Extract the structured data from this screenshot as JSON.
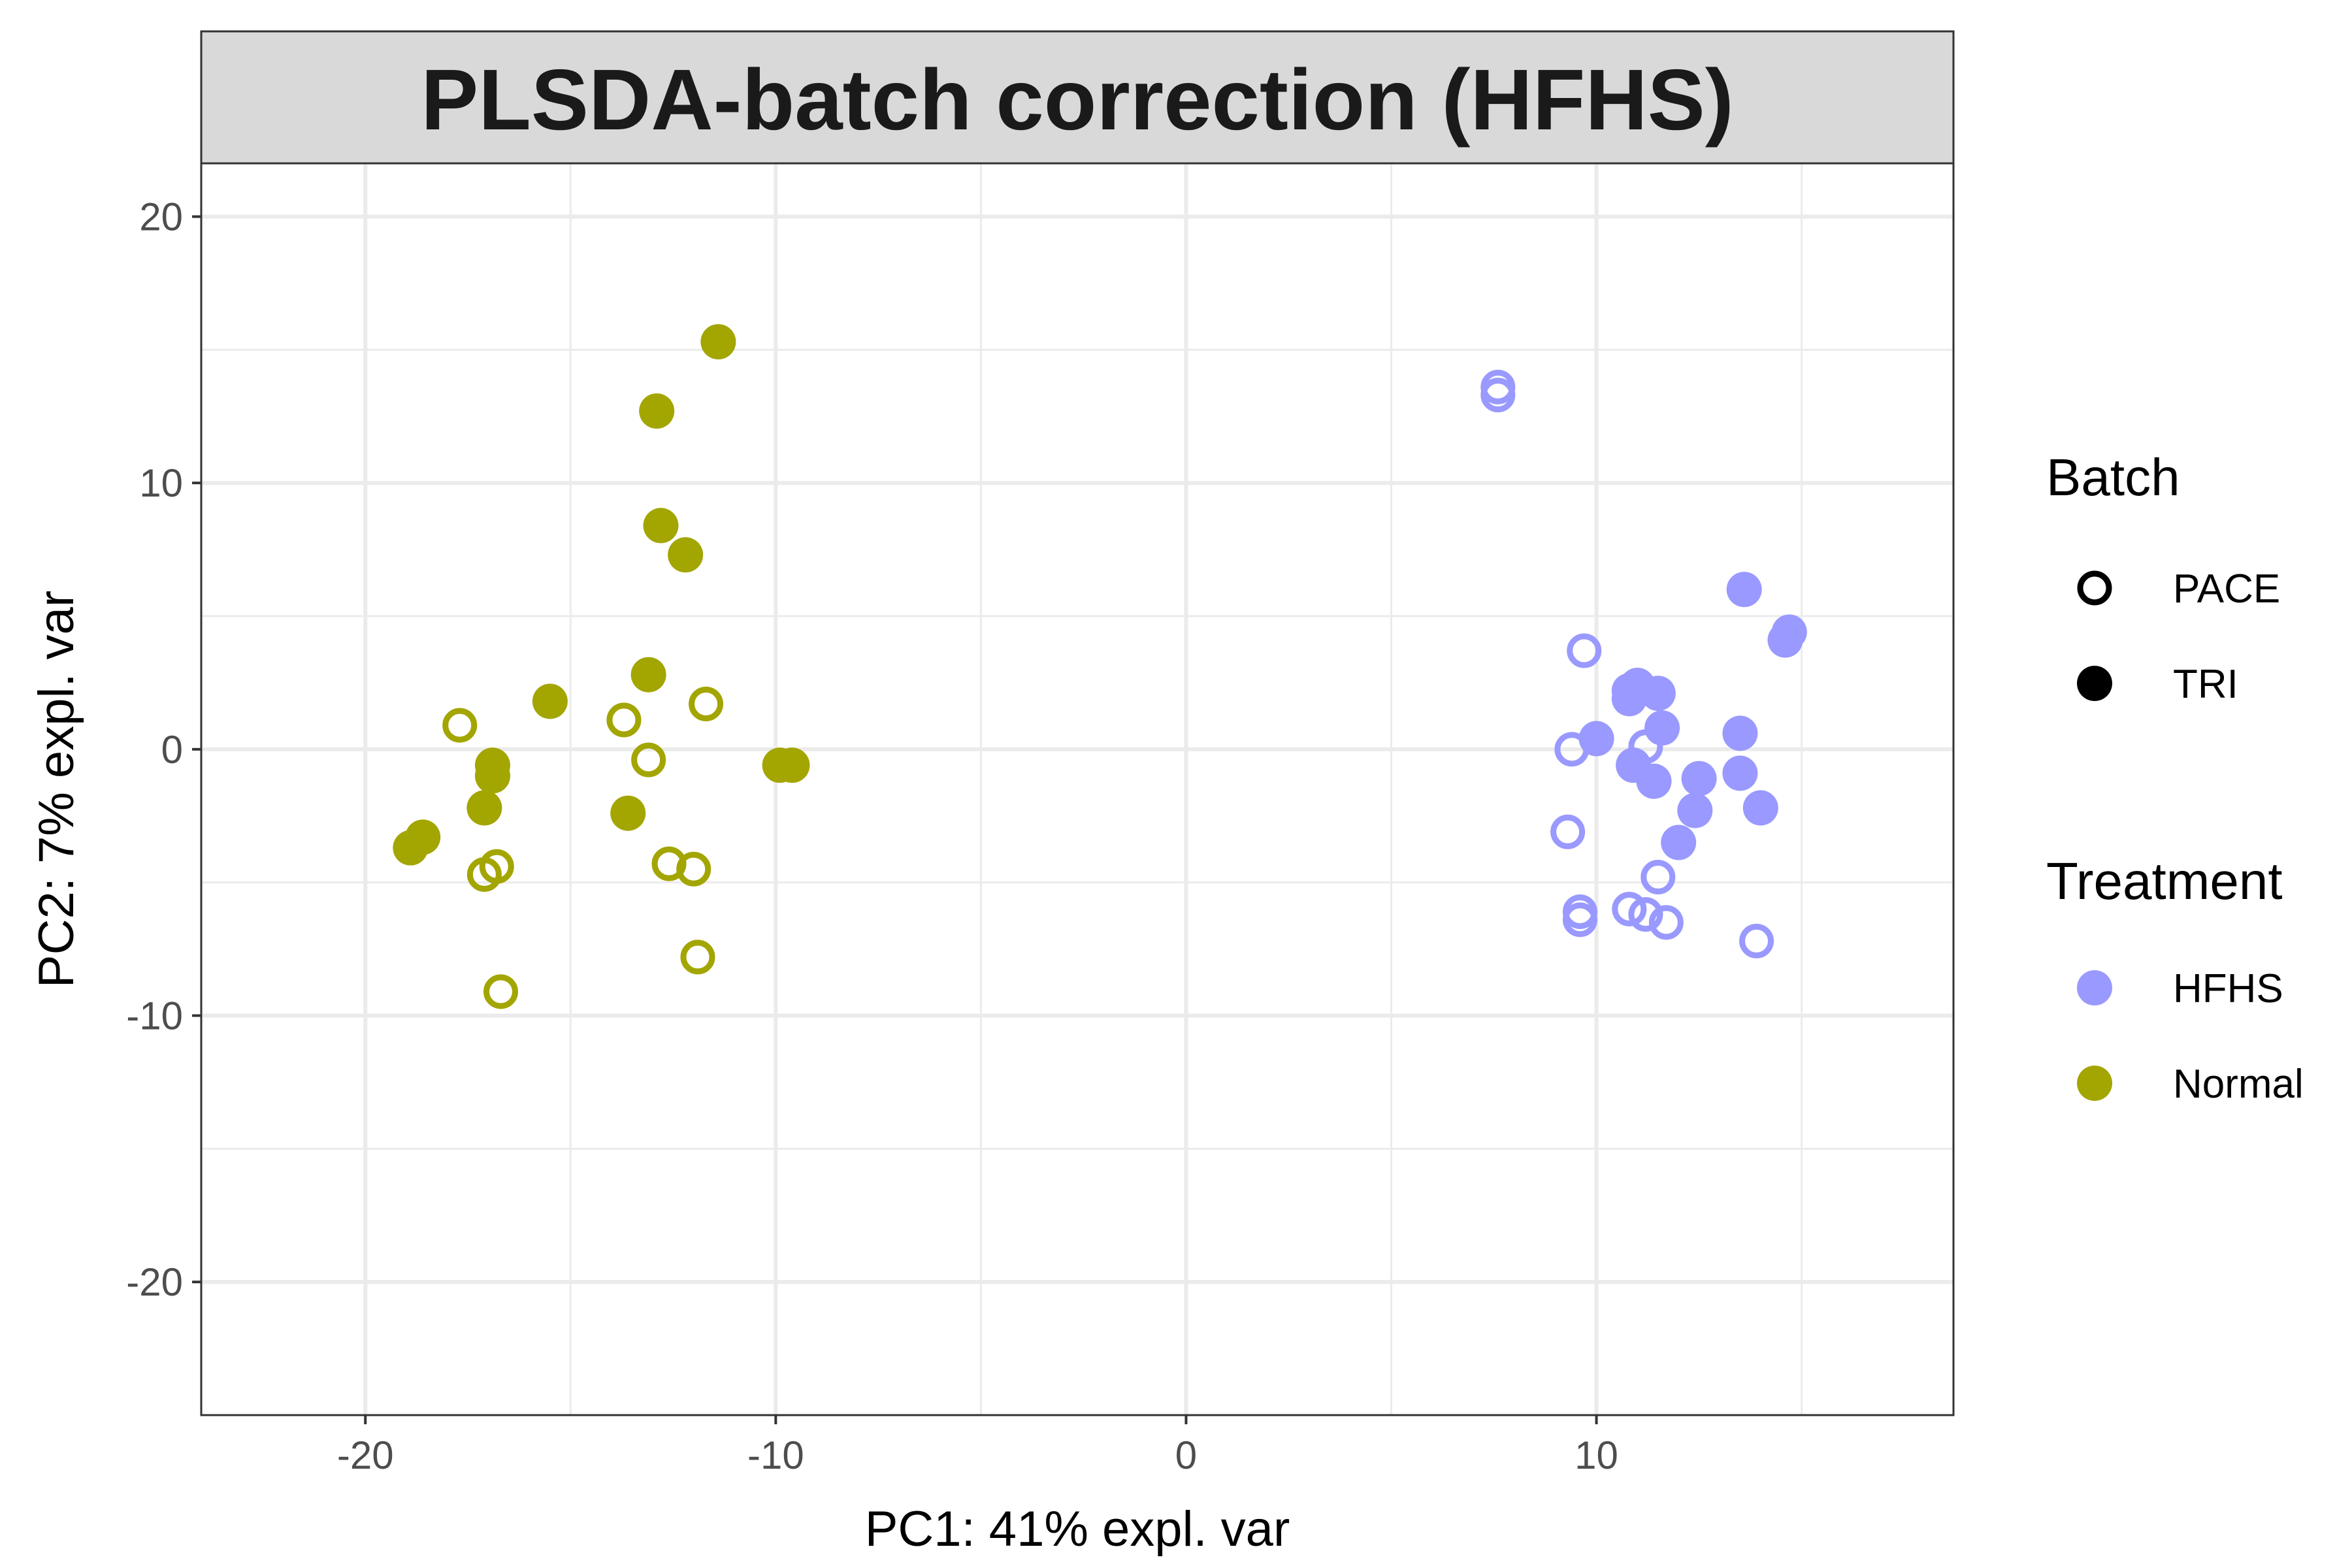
{
  "chart_data": {
    "type": "scatter",
    "title": "PLSDA-batch correction (HFHS)",
    "xlabel": "PC1: 41% expl. var",
    "ylabel": "PC2: 7% expl. var",
    "xlim": [
      -24,
      18.7
    ],
    "ylim": [
      -25,
      22
    ],
    "x_ticks": [
      -20,
      -10,
      0,
      10
    ],
    "y_ticks": [
      20,
      10,
      0,
      -10,
      -20
    ],
    "grid": true,
    "legend_position": "right",
    "legend": {
      "batch": {
        "title": "Batch",
        "items": [
          {
            "label": "PACE",
            "shape": "open-circle"
          },
          {
            "label": "TRI",
            "shape": "filled-circle"
          }
        ]
      },
      "treatment": {
        "title": "Treatment",
        "items": [
          {
            "label": "HFHS",
            "color": "#9999ff"
          },
          {
            "label": "Normal",
            "color": "#a3a500"
          }
        ]
      }
    },
    "colors": {
      "HFHS": "#9999ff",
      "Normal": "#a3a500"
    },
    "series": [
      {
        "treatment": "Normal",
        "batch": "TRI",
        "points": [
          [
            -11.4,
            15.3
          ],
          [
            -12.9,
            12.7
          ],
          [
            -12.8,
            8.4
          ],
          [
            -12.2,
            7.3
          ],
          [
            -13.1,
            2.8
          ],
          [
            -15.5,
            1.8
          ],
          [
            -16.9,
            -0.6
          ],
          [
            -16.9,
            -1.0
          ],
          [
            -17.1,
            -2.2
          ],
          [
            -18.6,
            -3.3
          ],
          [
            -18.9,
            -3.7
          ],
          [
            -13.6,
            -2.4
          ],
          [
            -9.9,
            -0.6
          ],
          [
            -9.6,
            -0.6
          ]
        ]
      },
      {
        "treatment": "Normal",
        "batch": "PACE",
        "points": [
          [
            -17.7,
            0.9
          ],
          [
            -13.7,
            1.1
          ],
          [
            -11.7,
            1.7
          ],
          [
            -13.1,
            -0.4
          ],
          [
            -17.1,
            -4.7
          ],
          [
            -16.8,
            -4.4
          ],
          [
            -12.6,
            -4.3
          ],
          [
            -12.0,
            -4.5
          ],
          [
            -11.9,
            -7.8
          ],
          [
            -16.7,
            -9.1
          ]
        ]
      },
      {
        "treatment": "HFHS",
        "batch": "TRI",
        "points": [
          [
            13.6,
            6.0
          ],
          [
            14.7,
            4.4
          ],
          [
            14.6,
            4.1
          ],
          [
            11.0,
            2.4
          ],
          [
            10.8,
            2.2
          ],
          [
            11.5,
            2.1
          ],
          [
            10.8,
            1.9
          ],
          [
            11.6,
            0.8
          ],
          [
            10.0,
            0.4
          ],
          [
            13.5,
            0.6
          ],
          [
            10.9,
            -0.6
          ],
          [
            11.4,
            -1.2
          ],
          [
            13.5,
            -0.9
          ],
          [
            12.5,
            -1.1
          ],
          [
            14.0,
            -2.2
          ],
          [
            12.4,
            -2.3
          ],
          [
            12.0,
            -3.5
          ]
        ]
      },
      {
        "treatment": "HFHS",
        "batch": "PACE",
        "points": [
          [
            7.6,
            13.6
          ],
          [
            7.6,
            13.3
          ],
          [
            9.7,
            3.7
          ],
          [
            9.4,
            0.0
          ],
          [
            11.2,
            0.1
          ],
          [
            9.3,
            -3.1
          ],
          [
            11.5,
            -4.8
          ],
          [
            9.6,
            -6.1
          ],
          [
            9.6,
            -6.4
          ],
          [
            10.8,
            -6.0
          ],
          [
            11.2,
            -6.2
          ],
          [
            11.7,
            -6.5
          ],
          [
            13.9,
            -7.2
          ]
        ]
      }
    ]
  }
}
